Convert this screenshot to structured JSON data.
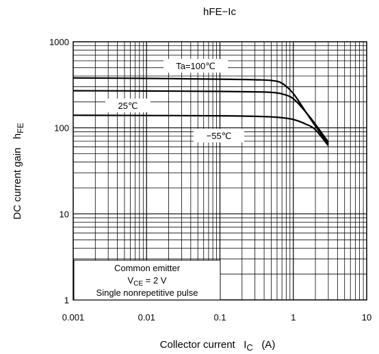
{
  "chart_data": {
    "type": "line",
    "title": "hFE−Ic",
    "xlabel": {
      "main": "Collector current",
      "symbol": "I",
      "subscript": "C",
      "unit": "(A)"
    },
    "ylabel": {
      "main": "DC current gain",
      "symbol": "h",
      "subscript": "FE"
    },
    "x_scale": "log",
    "y_scale": "log",
    "xlim": [
      0.001,
      10
    ],
    "ylim": [
      1,
      1000
    ],
    "x_ticks": [
      0.001,
      0.01,
      0.1,
      1,
      10
    ],
    "x_tick_labels": [
      "0.001",
      "0.01",
      "0.1",
      "1",
      "10"
    ],
    "y_ticks": [
      1,
      10,
      100,
      1000
    ],
    "y_tick_labels": [
      "1",
      "10",
      "100",
      "1000"
    ],
    "grid": true,
    "series": [
      {
        "name": "Ta=100℃",
        "x": [
          0.001,
          0.01,
          0.1,
          0.3,
          0.5,
          0.7,
          1.0,
          1.5,
          2.0,
          3.0
        ],
        "y": [
          380,
          375,
          368,
          362,
          355,
          330,
          250,
          150,
          105,
          65
        ]
      },
      {
        "name": "25℃",
        "x": [
          0.001,
          0.01,
          0.1,
          0.3,
          0.5,
          0.7,
          1.0,
          1.5,
          2.0,
          3.0
        ],
        "y": [
          270,
          268,
          265,
          262,
          258,
          248,
          218,
          150,
          110,
          68
        ]
      },
      {
        "name": "−55℃",
        "x": [
          0.001,
          0.01,
          0.1,
          0.3,
          0.5,
          0.7,
          1.0,
          1.5,
          2.0,
          3.0
        ],
        "y": [
          140,
          139,
          138,
          136,
          134,
          131,
          125,
          110,
          95,
          62
        ]
      }
    ],
    "legend_box": {
      "line1": "Common emitter",
      "line2_symbol": "V",
      "line2_subscript": "CE",
      "line2_value": " = 2 V",
      "line3": "Single nonrepetitive pulse"
    }
  }
}
